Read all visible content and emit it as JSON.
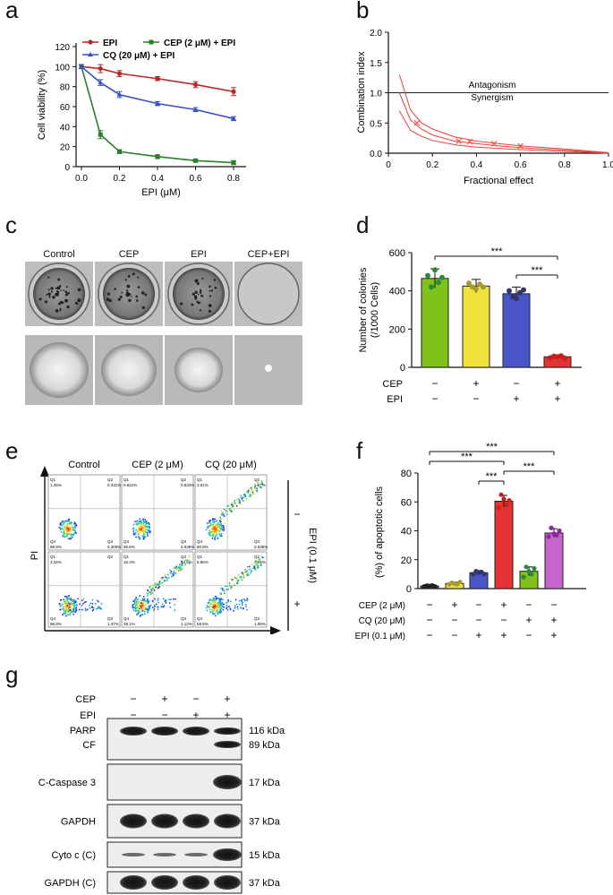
{
  "panels": {
    "a": "a",
    "b": "b",
    "c": "c",
    "d": "d",
    "e": "e",
    "f": "f",
    "g": "g"
  },
  "colors": {
    "epi": "#b52a2a",
    "cep_epi": "#2e7d2e",
    "cq_epi": "#3a4fc1",
    "ci_line": "#e8413a"
  },
  "panel_a": {
    "legend": {
      "epi": "EPI",
      "cep_epi": "CEP (2 μM) + EPI",
      "cq_epi": "CQ (20 μM) + EPI"
    },
    "ylabel": "Cell viability (%)",
    "xlabel": "EPI (μM)",
    "yticks": [
      "0",
      "20",
      "40",
      "60",
      "80",
      "100",
      "120"
    ],
    "xticks": [
      "0.0",
      "0.2",
      "0.4",
      "0.6",
      "0.8"
    ]
  },
  "panel_b": {
    "ylabel": "Combination index",
    "xlabel": "Fractional effect",
    "yticks": [
      "0.0",
      "0.5",
      "1.0",
      "1.5",
      "2.0"
    ],
    "xticks": [
      "0",
      "0.2",
      "0.4",
      "0.6",
      "0.8",
      "1.0"
    ],
    "antagonism": "Antagonism",
    "synergism": "Synergism"
  },
  "panel_c": {
    "labels": [
      "Control",
      "CEP",
      "EPI",
      "CEP+EPI"
    ]
  },
  "panel_d": {
    "ylabel_1": "Number of colonies",
    "ylabel_2": "(/1000 Cells)",
    "yticks": [
      "0",
      "200",
      "400",
      "600"
    ],
    "sig": [
      "***",
      "***"
    ],
    "rows": [
      {
        "label": "CEP",
        "signs": [
          "−",
          "+",
          "−",
          "+"
        ]
      },
      {
        "label": "EPI",
        "signs": [
          "−",
          "−",
          "+",
          "+"
        ]
      }
    ]
  },
  "panel_e": {
    "cols": [
      "Control",
      "CEP (2 μM)",
      "CQ (20 μM)"
    ],
    "side": "EPI (0.1 μM)",
    "minus": "−",
    "plus": "+",
    "ylabel": "PI",
    "xlabel": "Annexin V-FITC",
    "quads": [
      [
        "Q1",
        "1.25%",
        "Q2",
        "0.331%",
        "Q4",
        "98.9%",
        "Q3",
        "0.305%"
      ],
      [
        "Q1",
        "0.621%",
        "Q2",
        "0.534%",
        "Q4",
        "96.8%",
        "Q3",
        "0.035%"
      ],
      [
        "Q1",
        "3.51%",
        "Q2",
        "14.7%",
        "Q4",
        "80.8%",
        "Q3",
        "0.036%"
      ],
      [
        "Q1",
        "3.34%",
        "Q2",
        "",
        "Q4",
        "96.8%",
        "Q3",
        "1.37%"
      ],
      [
        "Q1",
        "16.3%",
        "Q2",
        "44.8%",
        "Q4",
        "38.1%",
        "Q3",
        "1.12%"
      ],
      [
        "Q1",
        "5.86%",
        "Q2",
        "33.5%",
        "Q4",
        "59.5%",
        "Q3",
        "1.06%"
      ]
    ]
  },
  "panel_f": {
    "ylabel": "(%) of apoptotic cells",
    "yticks": [
      "0",
      "20",
      "40",
      "60",
      "80"
    ],
    "sig": [
      "***",
      "***",
      "***",
      "***"
    ],
    "rows": [
      {
        "label": "CEP (2 μM)",
        "signs": [
          "−",
          "+",
          "−",
          "+",
          "−",
          "−"
        ]
      },
      {
        "label": "CQ (20 μM)",
        "signs": [
          "−",
          "−",
          "−",
          "−",
          "+",
          "+"
        ]
      },
      {
        "label": "EPI (0.1 μM)",
        "signs": [
          "−",
          "−",
          "+",
          "+",
          "−",
          "+"
        ]
      }
    ]
  },
  "panel_g": {
    "header": [
      {
        "label": "CEP",
        "signs": [
          "−",
          "+",
          "−",
          "+"
        ]
      },
      {
        "label": "EPI",
        "signs": [
          "−",
          "−",
          "+",
          "+"
        ]
      }
    ],
    "blots": [
      {
        "left": "PARP",
        "left2": "CF",
        "right": "116 kDa",
        "right2": "89 kDa"
      },
      {
        "left": "C-Caspase 3",
        "right": "17 kDa"
      },
      {
        "left": "GAPDH",
        "right": "37 kDa"
      },
      {
        "left": "Cyto c (C)",
        "right": "15 kDa"
      },
      {
        "left": "GAPDH (C)",
        "right": "37 kDa"
      }
    ]
  },
  "chart_data": [
    {
      "type": "line",
      "title": "",
      "xlabel": "EPI (μM)",
      "ylabel": "Cell viability (%)",
      "xlim": [
        0,
        0.85
      ],
      "ylim": [
        0,
        120
      ],
      "x": [
        0,
        0.1,
        0.2,
        0.4,
        0.6,
        0.8
      ],
      "series": [
        {
          "name": "EPI",
          "values": [
            100,
            98,
            93,
            88,
            82,
            75
          ],
          "errors": [
            2,
            4,
            3,
            2,
            3,
            4
          ]
        },
        {
          "name": "CEP (2 μM) + EPI",
          "values": [
            100,
            32,
            15,
            10,
            6,
            4
          ],
          "errors": [
            2,
            4,
            2,
            2,
            1,
            2
          ]
        },
        {
          "name": "CQ (20 μM) + EPI",
          "values": [
            100,
            84,
            72,
            63,
            57,
            48
          ],
          "errors": [
            2,
            3,
            3,
            2,
            2,
            2
          ]
        }
      ]
    },
    {
      "type": "line",
      "title": "",
      "xlabel": "Fractional effect",
      "ylabel": "Combination index",
      "xlim": [
        0,
        1.0
      ],
      "ylim": [
        0,
        2.0
      ],
      "reference_line": 1.0,
      "markers": {
        "x": [
          0.13,
          0.32,
          0.37,
          0.48,
          0.6
        ],
        "y": [
          0.5,
          0.2,
          0.19,
          0.16,
          0.12
        ]
      },
      "series": [
        {
          "name": "upper",
          "x": [
            0.05,
            0.1,
            0.15,
            0.2,
            0.3,
            0.4,
            0.5,
            0.6,
            0.8,
            1.0
          ],
          "values": [
            1.3,
            0.72,
            0.5,
            0.4,
            0.27,
            0.2,
            0.16,
            0.12,
            0.07,
            0.01
          ]
        },
        {
          "name": "middle",
          "x": [
            0.05,
            0.1,
            0.15,
            0.2,
            0.3,
            0.4,
            0.5,
            0.6,
            0.8,
            1.0
          ],
          "values": [
            1.0,
            0.55,
            0.4,
            0.3,
            0.2,
            0.16,
            0.12,
            0.09,
            0.05,
            0.0
          ]
        },
        {
          "name": "lower",
          "x": [
            0.05,
            0.1,
            0.15,
            0.2,
            0.3,
            0.4,
            0.5,
            0.6,
            0.8,
            1.0
          ],
          "values": [
            0.7,
            0.38,
            0.28,
            0.21,
            0.14,
            0.1,
            0.08,
            0.06,
            0.03,
            0.0
          ]
        }
      ]
    },
    {
      "type": "bar",
      "title": "",
      "ylabel": "Number of colonies (/1000 Cells)",
      "ylim": [
        0,
        600
      ],
      "categories": [
        "Control",
        "CEP",
        "EPI",
        "CEP+EPI"
      ],
      "values": [
        465,
        425,
        385,
        55
      ],
      "errors": [
        50,
        35,
        35,
        10
      ],
      "colors": [
        "#7ec21a",
        "#f0e23a",
        "#4a55c8",
        "#e53232"
      ],
      "points": [
        [
          480,
          420,
          510,
          445,
          470
        ],
        [
          440,
          420,
          410,
          435,
          420
        ],
        [
          400,
          370,
          360,
          390,
          405
        ],
        [
          50,
          58,
          55,
          60,
          48
        ]
      ],
      "point_colors": [
        "#2f8a3a",
        "#a89a33",
        "#33366e",
        "#c22222"
      ]
    },
    {
      "type": "bar",
      "title": "",
      "ylabel": "(%) of apoptotic cells",
      "ylim": [
        0,
        80
      ],
      "categories": [
        "Control",
        "CEP",
        "EPI",
        "CEP+EPI",
        "CQ",
        "CQ+EPI"
      ],
      "values": [
        1.8,
        3.5,
        11,
        60.5,
        12,
        38.5
      ],
      "errors": [
        0.5,
        1,
        1.5,
        4,
        3,
        3
      ],
      "colors": [
        "#555555",
        "#f0e23a",
        "#4a55c8",
        "#e53232",
        "#7ec21a",
        "#c864d0"
      ],
      "points": [
        [
          1.5,
          2,
          1.8,
          2.2,
          1.5
        ],
        [
          3,
          4,
          3.5,
          3,
          4.5
        ],
        [
          10,
          12,
          11,
          11.5,
          10
        ],
        [
          56,
          65,
          62,
          58,
          61
        ],
        [
          8,
          15,
          12,
          10,
          14
        ],
        [
          36,
          42,
          38,
          37,
          40
        ]
      ],
      "point_colors": [
        "#222222",
        "#a89a33",
        "#33366e",
        "#c22222",
        "#2f8a3a",
        "#8a2a9a"
      ]
    }
  ]
}
